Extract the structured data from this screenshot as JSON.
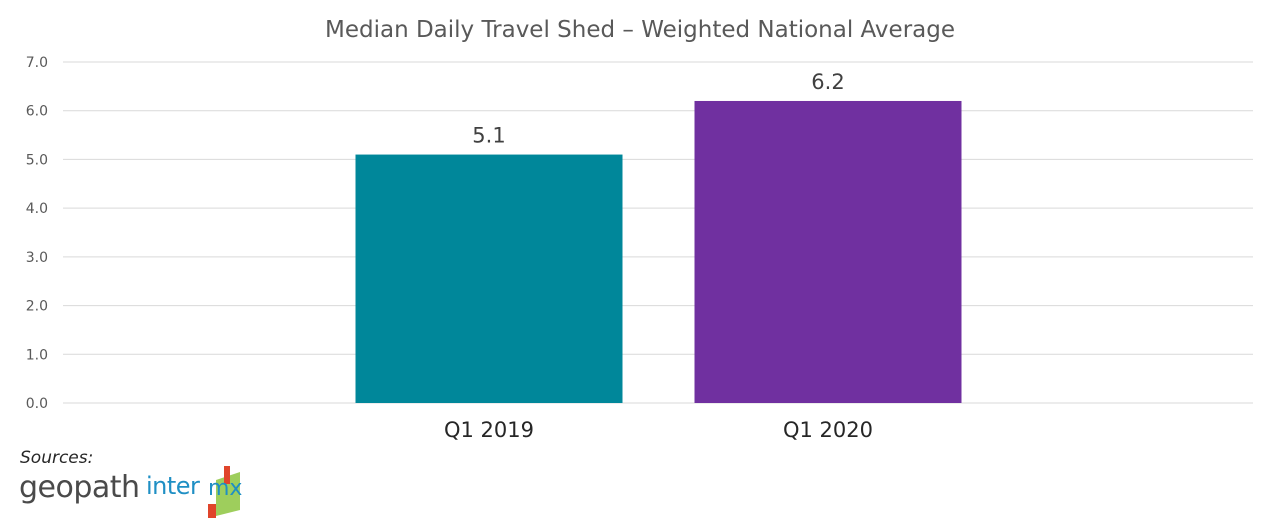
{
  "chart_data": {
    "type": "bar",
    "title": "Median Daily Travel Shed – Weighted National Average",
    "categories": [
      "Q1 2019",
      "Q1 2020"
    ],
    "values": [
      5.1,
      6.2
    ],
    "data_labels": [
      "5.1",
      "6.2"
    ],
    "bar_colors": [
      "#00879a",
      "#7030a0"
    ],
    "ylim": [
      0,
      7
    ],
    "yticks": [
      "0.0",
      "1.0",
      "2.0",
      "3.0",
      "4.0",
      "5.0",
      "6.0",
      "7.0"
    ],
    "grid": true,
    "legend": "none"
  },
  "footer": {
    "sources_label": "Sources:",
    "logos": [
      {
        "name": "geopath",
        "text": "geopath",
        "color": "#4a4a4a"
      },
      {
        "name": "intermx",
        "text": "inter",
        "mark_text": "mx",
        "color": "#1f8fc4",
        "accent_colors": [
          "#e0452b",
          "#8dc63f"
        ]
      }
    ]
  }
}
